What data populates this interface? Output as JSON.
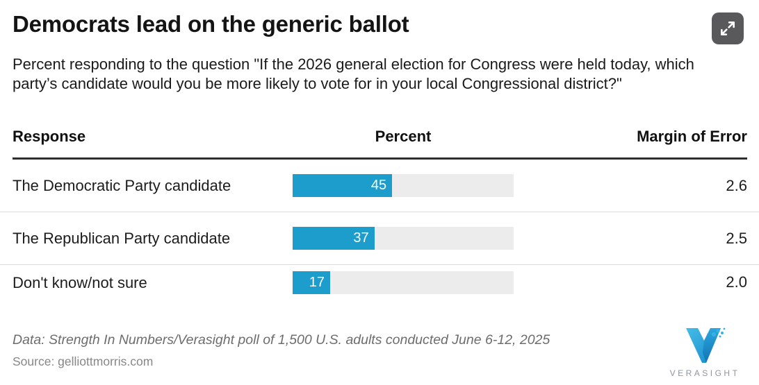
{
  "header": {
    "title": "Democrats lead on the generic ballot",
    "subtitle": "Percent responding to the question \"If the 2026 general election for Congress were held today, which party’s candidate would you be more likely to vote for in your local Congressional district?\""
  },
  "controls": {
    "expand_icon": "expand-arrows-icon"
  },
  "table": {
    "columns": [
      "Response",
      "Percent",
      "Margin of Error"
    ],
    "rows": [
      {
        "response": "The Democratic Party candidate",
        "percent": 45,
        "margin_of_error": "2.6"
      },
      {
        "response": "The Republican Party candidate",
        "percent": 37,
        "margin_of_error": "2.5"
      },
      {
        "response": "Don't know/not sure",
        "percent": 17,
        "margin_of_error": "2.0"
      }
    ]
  },
  "chart_data": {
    "type": "bar",
    "orientation": "horizontal",
    "title": "Democrats lead on the generic ballot",
    "subtitle": "Percent responding to the question \"If the 2026 general election for Congress were held today, which party’s candidate would you be more likely to vote for in your local Congressional district?\"",
    "categories": [
      "The Democratic Party candidate",
      "The Republican Party candidate",
      "Don't know/not sure"
    ],
    "values": [
      45,
      37,
      17
    ],
    "margin_of_error": [
      2.6,
      2.5,
      2.0
    ],
    "xlabel": "Percent",
    "xlim": [
      0,
      100
    ],
    "grid": false,
    "legend": false,
    "bar_color": "#1c9dcb",
    "track_color": "#ececec"
  },
  "footer": {
    "data_note": "Data: Strength In Numbers/Verasight poll of 1,500 U.S. adults conducted June 6-12, 2025",
    "source": "Source: gelliottmorris.com",
    "logo_text": "VERASIGHT"
  },
  "colors": {
    "bar_fill": "#1c9dcb",
    "bar_track": "#ececec",
    "header_rule": "#2e2e2e",
    "row_divider": "#dcdcdc",
    "expand_button_bg": "#59595c",
    "logo_teal_light": "#45bde8",
    "logo_teal_dark": "#1487c9"
  }
}
